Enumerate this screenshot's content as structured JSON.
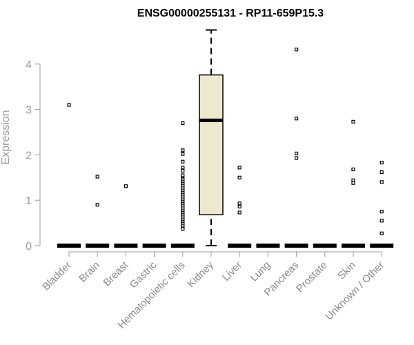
{
  "chart_data": {
    "type": "boxplot",
    "title": "ENSG00000255131 - RP11-659P15.3",
    "xlabel": "",
    "ylabel": "Expression",
    "ylim": [
      0,
      4.75
    ],
    "yticks": [
      0,
      1,
      2,
      3,
      4
    ],
    "categories": [
      "Bladder",
      "Brain",
      "Breast",
      "Gastric",
      "Hematopoietic cells",
      "Kidney",
      "Liver",
      "Lung",
      "Pancreas",
      "Prostate",
      "Skin",
      "Unknown / Other"
    ],
    "box": {
      "category": "Kidney",
      "whisker_low": 0,
      "q1": 0.68,
      "median": 2.76,
      "q3": 3.76,
      "whisker_high": 4.75,
      "fill": "#ede8cf"
    },
    "baseline_value": 0,
    "outliers": [
      {
        "category": "Bladder",
        "values": [
          3.1
        ]
      },
      {
        "category": "Brain",
        "values": [
          1.52,
          0.9
        ]
      },
      {
        "category": "Breast",
        "values": [
          1.31
        ]
      },
      {
        "category": "Gastric",
        "values": []
      },
      {
        "category": "Hematopoietic cells",
        "values": [
          2.7,
          2.1,
          2.02,
          1.85,
          1.72,
          1.65,
          1.55,
          1.47,
          1.44,
          1.4,
          1.36,
          1.32,
          1.28,
          1.24,
          1.2,
          1.16,
          1.12,
          1.08,
          1.04,
          1.0,
          0.96,
          0.92,
          0.88,
          0.84,
          0.8,
          0.76,
          0.72,
          0.68,
          0.64,
          0.6,
          0.56,
          0.52,
          0.48,
          0.44,
          0.4,
          0.37
        ]
      },
      {
        "category": "Liver",
        "values": [
          1.72,
          1.5,
          0.93,
          0.86,
          0.73
        ]
      },
      {
        "category": "Lung",
        "values": []
      },
      {
        "category": "Pancreas",
        "values": [
          4.32,
          2.8,
          2.03,
          1.93
        ]
      },
      {
        "category": "Prostate",
        "values": []
      },
      {
        "category": "Skin",
        "values": [
          2.73,
          1.68,
          1.44,
          1.38
        ]
      },
      {
        "category": "Unknown / Other",
        "values": [
          1.83,
          1.62,
          1.4,
          0.75,
          0.55,
          0.27
        ]
      }
    ]
  }
}
